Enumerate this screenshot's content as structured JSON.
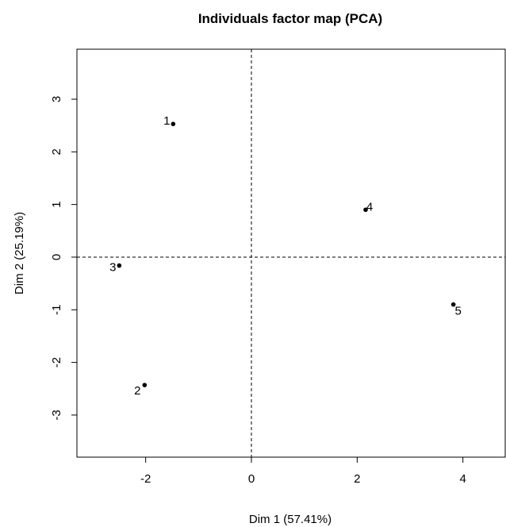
{
  "chart_data": {
    "type": "scatter",
    "title": "Individuals factor map (PCA)",
    "xlabel": "Dim 1 (57.41%)",
    "ylabel": "Dim 2 (25.19%)",
    "xlim": [
      -3.3,
      4.8
    ],
    "ylim": [
      -3.8,
      3.95
    ],
    "xticks": [
      -2,
      0,
      2,
      4
    ],
    "yticks": [
      -3,
      -2,
      -1,
      0,
      1,
      2,
      3
    ],
    "grid": false,
    "reference_lines": {
      "x": 0,
      "y": 0,
      "style": "dashed"
    },
    "points": [
      {
        "label": "1",
        "x": -1.48,
        "y": 2.53
      },
      {
        "label": "2",
        "x": -2.02,
        "y": -2.43
      },
      {
        "label": "3",
        "x": -2.5,
        "y": -0.16
      },
      {
        "label": "4",
        "x": 2.16,
        "y": 0.9
      },
      {
        "label": "5",
        "x": 3.82,
        "y": -0.9
      }
    ]
  }
}
